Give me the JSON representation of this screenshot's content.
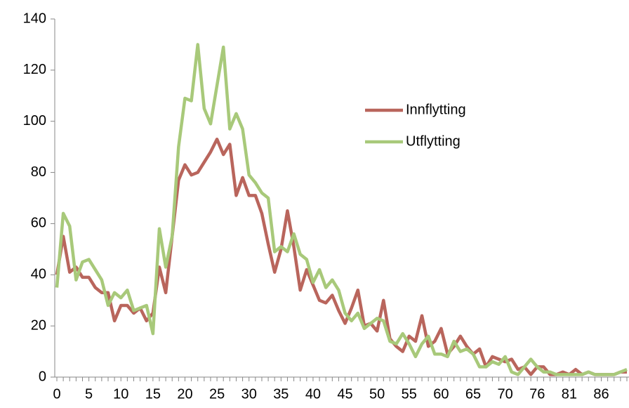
{
  "chart_data": {
    "type": "line",
    "categories": [
      0,
      null,
      null,
      null,
      null,
      5,
      null,
      null,
      null,
      null,
      10,
      null,
      null,
      null,
      null,
      15,
      null,
      null,
      null,
      null,
      20,
      null,
      null,
      null,
      null,
      25,
      null,
      null,
      null,
      null,
      30,
      null,
      null,
      null,
      null,
      35,
      null,
      null,
      null,
      null,
      40,
      null,
      null,
      null,
      null,
      45,
      null,
      null,
      null,
      null,
      50,
      null,
      null,
      null,
      null,
      55,
      null,
      null,
      null,
      null,
      60,
      null,
      null,
      null,
      null,
      65,
      null,
      null,
      null,
      null,
      70,
      null,
      null,
      null,
      null,
      76,
      null,
      null,
      null,
      null,
      81,
      null,
      null,
      null,
      null,
      86,
      null,
      null,
      null,
      null
    ],
    "series": [
      {
        "name": "Innflytting",
        "color": "#b9655c",
        "values": [
          40,
          55,
          41,
          43,
          39,
          39,
          35,
          33,
          33,
          22,
          28,
          28,
          25,
          27,
          22,
          25,
          43,
          33,
          55,
          77,
          83,
          79,
          80,
          84,
          88,
          93,
          87,
          91,
          71,
          78,
          71,
          71,
          64,
          52,
          41,
          50,
          65,
          51,
          34,
          42,
          36,
          30,
          29,
          32,
          26,
          21,
          27,
          34,
          20,
          21,
          18,
          30,
          15,
          12,
          10,
          16,
          14,
          24,
          12,
          14,
          19,
          9,
          12,
          16,
          12,
          9,
          11,
          4,
          8,
          7,
          6,
          7,
          3,
          4,
          1,
          4,
          4,
          1,
          1,
          2,
          1,
          3,
          1,
          2,
          1,
          1,
          1,
          1,
          2,
          2
        ]
      },
      {
        "name": "Utflytting",
        "color": "#a8c97a",
        "values": [
          35,
          64,
          59,
          38,
          45,
          46,
          42,
          38,
          28,
          33,
          31,
          34,
          26,
          27,
          28,
          17,
          58,
          43,
          55,
          90,
          109,
          108,
          130,
          105,
          99,
          114,
          129,
          97,
          103,
          97,
          79,
          76,
          72,
          70,
          49,
          51,
          49,
          56,
          48,
          46,
          37,
          42,
          35,
          38,
          34,
          25,
          22,
          25,
          19,
          21,
          23,
          22,
          14,
          13,
          17,
          13,
          8,
          13,
          16,
          9,
          9,
          8,
          14,
          10,
          11,
          9,
          4,
          4,
          6,
          5,
          8,
          2,
          1,
          4,
          7,
          4,
          2,
          2,
          1,
          1,
          1,
          1,
          1,
          2,
          1,
          1,
          1,
          1,
          2,
          3
        ]
      }
    ],
    "ylim": [
      0,
      140
    ],
    "yticks": [
      0,
      20,
      40,
      60,
      80,
      100,
      120,
      140
    ],
    "grid": false,
    "legend": "right"
  }
}
